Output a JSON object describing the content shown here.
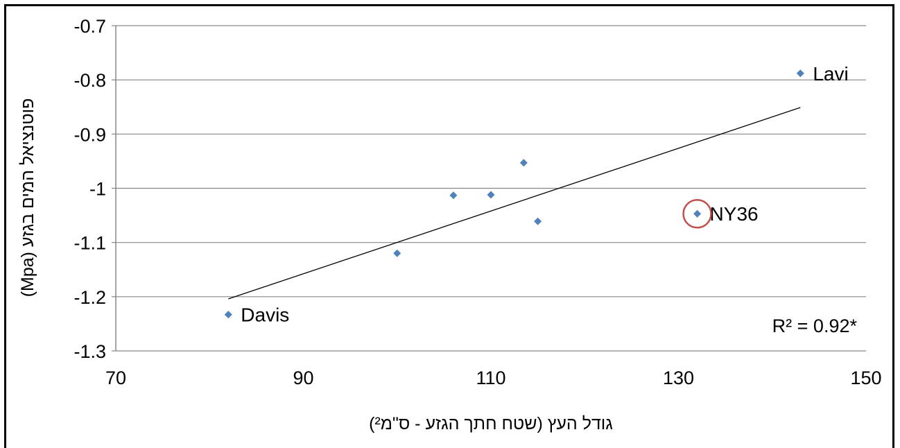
{
  "chart_data": {
    "type": "scatter",
    "title": "",
    "xlabel": "גודל העץ (שטח חתך הגזע - ס\"מ²)",
    "ylabel": "פוטנציאל המים בגזע (Mpa)",
    "xlim": [
      70,
      150
    ],
    "ylim": [
      -1.3,
      -0.7
    ],
    "x_ticks": [
      "70",
      "90",
      "110",
      "130",
      "150"
    ],
    "y_ticks": [
      "-0.7",
      "-0.8",
      "-0.9",
      "-1",
      "-1.1",
      "-1.2",
      "-1.3"
    ],
    "grid": true,
    "marker_color": "#4f81bd",
    "points": [
      {
        "x": 82,
        "y": -1.233,
        "label": "Davis"
      },
      {
        "x": 100,
        "y": -1.12,
        "label": ""
      },
      {
        "x": 106,
        "y": -1.013,
        "label": ""
      },
      {
        "x": 110,
        "y": -1.012,
        "label": ""
      },
      {
        "x": 113.5,
        "y": -0.953,
        "label": ""
      },
      {
        "x": 115,
        "y": -1.061,
        "label": ""
      },
      {
        "x": 132,
        "y": -1.047,
        "label": "NY36",
        "highlighted": true
      },
      {
        "x": 143,
        "y": -0.788,
        "label": "Lavi"
      }
    ],
    "trendline": {
      "x": [
        82,
        143
      ],
      "y": [
        -1.204,
        -0.851
      ]
    },
    "annotations": [
      "R² = 0.92*"
    ]
  }
}
